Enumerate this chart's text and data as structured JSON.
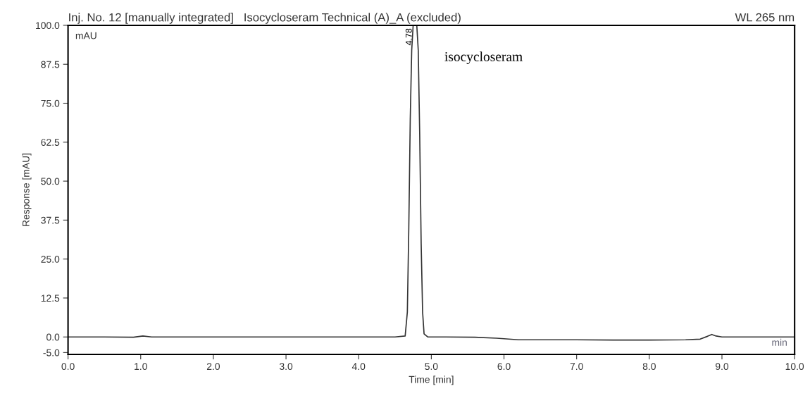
{
  "chart_data": {
    "type": "line",
    "title": "Inj. No. 12 [manually integrated]   Isocycloseram Technical (A)_A (excluded)",
    "subtitle": "WL 265 nm",
    "xlabel": "Time [min]",
    "ylabel": "Response [mAU]",
    "x": [
      0.0,
      0.5,
      0.9,
      1.03,
      1.15,
      2.0,
      3.0,
      4.0,
      4.5,
      4.64,
      4.67,
      4.69,
      4.71,
      4.73,
      4.75,
      4.77,
      4.8,
      4.82,
      4.84,
      4.86,
      4.88,
      4.9,
      4.95,
      5.2,
      5.6,
      5.9,
      6.2,
      6.5,
      7.0,
      7.5,
      8.0,
      8.5,
      8.7,
      8.8,
      8.86,
      8.92,
      9.0,
      9.5,
      10.0
    ],
    "series": [
      {
        "color": "#333333",
        "values": [
          0.0,
          0.0,
          -0.1,
          0.3,
          0.0,
          0.0,
          0.0,
          0.0,
          0.0,
          0.3,
          8.0,
          35.0,
          70.0,
          92.0,
          100.0,
          100.0,
          100.0,
          92.0,
          65.0,
          30.0,
          8.0,
          1.0,
          0.0,
          0.0,
          -0.1,
          -0.4,
          -0.9,
          -0.9,
          -0.9,
          -1.0,
          -1.0,
          -0.9,
          -0.7,
          0.2,
          0.8,
          0.3,
          0.0,
          0.0,
          0.0
        ]
      }
    ],
    "xlim": [
      0.0,
      10.0
    ],
    "xticks": [
      {
        "value": 0,
        "label": "0.0"
      },
      {
        "value": 1,
        "label": "1.0"
      },
      {
        "value": 2,
        "label": "2.0"
      },
      {
        "value": 3,
        "label": "3.0"
      },
      {
        "value": 4,
        "label": "4.0"
      },
      {
        "value": 5,
        "label": "5.0"
      },
      {
        "value": 6,
        "label": "6.0"
      },
      {
        "value": 7,
        "label": "7.0"
      },
      {
        "value": 8,
        "label": "8.0"
      },
      {
        "value": 9,
        "label": "9.0"
      },
      {
        "value": 10,
        "label": "10.0"
      }
    ],
    "ylim": [
      -5.6,
      100.0
    ],
    "yticks": [
      {
        "value": -5,
        "label": "-5.0"
      },
      {
        "value": 0,
        "label": "0.0"
      },
      12.5,
      {
        "value": 25,
        "label": "25.0"
      },
      37.5,
      {
        "value": 50,
        "label": "50.0"
      },
      62.5,
      {
        "value": 75,
        "label": "75.0"
      },
      87.5,
      {
        "value": 100,
        "label": "100.0"
      }
    ],
    "annotations": [
      {
        "text": "4.78",
        "x": 4.78,
        "y": 100.0
      },
      "isocycloseram",
      "mAU",
      "min"
    ],
    "grid": false,
    "legend": false,
    "marker": "none",
    "line_style": "solid"
  }
}
